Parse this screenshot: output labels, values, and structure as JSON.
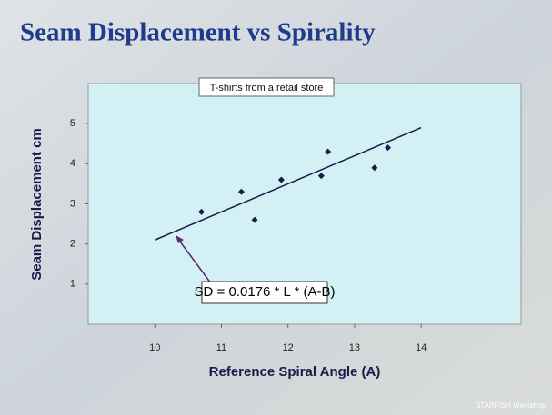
{
  "chart_data": {
    "type": "scatter",
    "title": "Seam Displacement vs Spirality",
    "subtitle": "T-shirts from a retail store",
    "x_label": "Reference Spiral Angle (A)",
    "y_label": "Seam Displacement cm",
    "annotation": "SD = 0.0176 * L * (A-B)",
    "footer": "STARFISH Workshop",
    "x": [
      10.7,
      11.3,
      11.5,
      11.9,
      12.5,
      12.6,
      13.3,
      13.5
    ],
    "values": [
      2.8,
      3.3,
      2.6,
      3.6,
      3.7,
      4.3,
      3.9,
      4.4
    ],
    "color": "#1a1a4a",
    "trendline": {
      "x": [
        10,
        14
      ],
      "values": [
        2.1,
        4.9
      ],
      "color": "#1a1a4a"
    },
    "xlim": [
      9,
      15.5
    ],
    "xticks": [
      10,
      11,
      12,
      13,
      14
    ],
    "ylim": [
      0,
      6
    ],
    "yticks": [
      1,
      2,
      3,
      4,
      5
    ]
  }
}
